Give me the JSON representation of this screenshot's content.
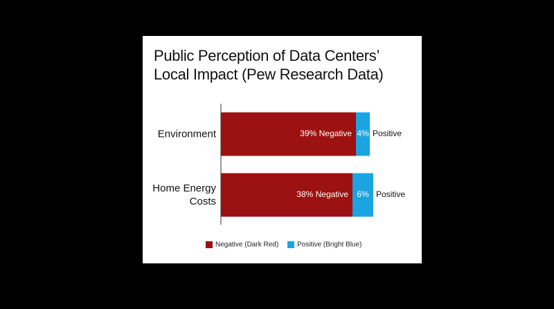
{
  "chart_data": {
    "type": "stacked-bar-horizontal",
    "title": "Public Perception of Data Centers’\nLocal Impact (Pew Research Data)",
    "categories": [
      "Environment",
      "Home Energy\nCosts"
    ],
    "series": [
      {
        "name": "Negative (Dark Red)",
        "color": "#9c1111",
        "values": [
          39,
          38
        ],
        "value_labels": [
          "39% Negative",
          "38% Negative"
        ]
      },
      {
        "name": "Positive (Bright Blue)",
        "color": "#1ca4e2",
        "values": [
          4,
          6
        ],
        "value_labels": [
          "4%",
          "6%"
        ],
        "end_labels": [
          "Positive",
          "Positive"
        ]
      }
    ],
    "legend": "bottom"
  }
}
